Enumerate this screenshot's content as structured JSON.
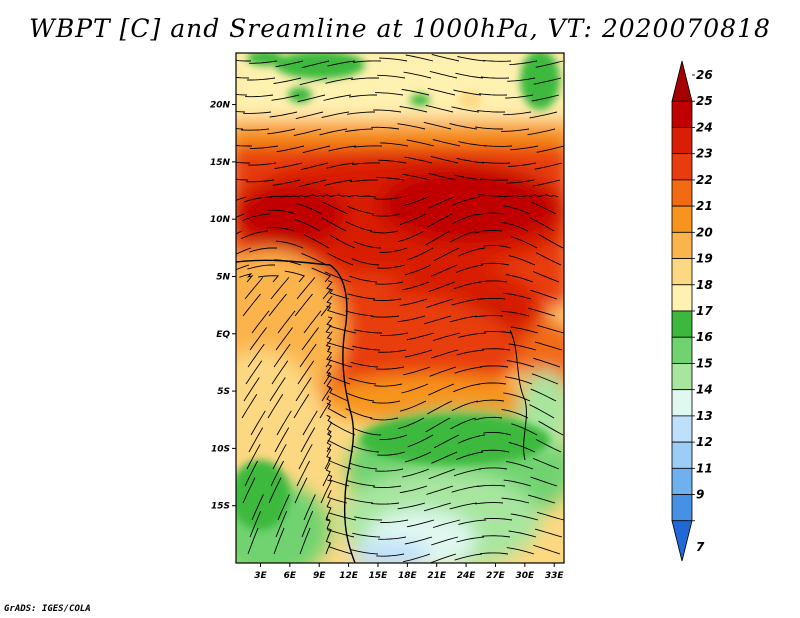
{
  "title": "WBPT [C] and Sreamline at 1000hPa, VT: 2020070818",
  "credit": "GrADS: IGES/COLA",
  "map": {
    "lat_labels": [
      "20N",
      "15N",
      "10N",
      "5N",
      "EQ",
      "5S",
      "10S",
      "15S"
    ],
    "lat_values": [
      20,
      15,
      10,
      5,
      0,
      -5,
      -10,
      -15
    ],
    "lon_labels": [
      "3E",
      "6E",
      "9E",
      "12E",
      "15E",
      "18E",
      "21E",
      "24E",
      "27E",
      "30E",
      "33E"
    ],
    "lon_values": [
      3,
      6,
      9,
      12,
      15,
      18,
      21,
      24,
      27,
      30,
      33
    ],
    "lat_range": [
      -20,
      24.5
    ],
    "lon_range": [
      0.5,
      34
    ]
  },
  "colorbar": {
    "levels": [
      "26",
      "25",
      "24",
      "23",
      "22",
      "21",
      "20",
      "19",
      "18",
      "17",
      "16",
      "15",
      "14",
      "13",
      "12",
      "11",
      "9",
      "7"
    ],
    "colors": [
      "#a50000",
      "#c00000",
      "#d81e05",
      "#e83c0e",
      "#f26b12",
      "#f7941d",
      "#fbb44b",
      "#fdd882",
      "#fff1b0",
      "#3cb93c",
      "#6fd36f",
      "#a8e6a0",
      "#e0f8f0",
      "#bfe0fb",
      "#9ccdf5",
      "#6fb0ee",
      "#4690e6",
      "#2068d6"
    ]
  }
}
